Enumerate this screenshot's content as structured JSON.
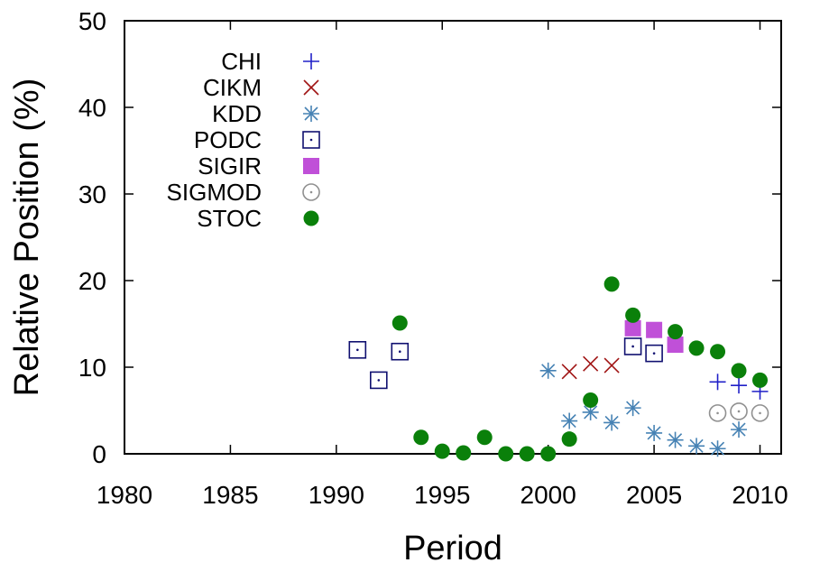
{
  "chart_data": {
    "type": "scatter",
    "title": "",
    "xlabel": "Period",
    "ylabel": "Relative Position (%)",
    "xlim": [
      1980,
      2011
    ],
    "ylim": [
      0,
      50
    ],
    "xticks": [
      1980,
      1985,
      1990,
      1995,
      2000,
      2005,
      2010
    ],
    "yticks": [
      0,
      10,
      20,
      30,
      40,
      50
    ],
    "grid": false,
    "legend_position": "top-left",
    "series": [
      {
        "name": "CHI",
        "marker": "plus",
        "color": "#2020c8",
        "points": [
          [
            2008,
            8.3
          ],
          [
            2009,
            7.9
          ],
          [
            2010,
            7.2
          ]
        ]
      },
      {
        "name": "CIKM",
        "marker": "x",
        "color": "#a01414",
        "points": [
          [
            2001,
            9.5
          ],
          [
            2002,
            10.4
          ],
          [
            2003,
            10.2
          ]
        ]
      },
      {
        "name": "KDD",
        "marker": "star",
        "color": "#4682b4",
        "points": [
          [
            2000,
            9.6
          ],
          [
            2001,
            3.8
          ],
          [
            2002,
            4.8
          ],
          [
            2003,
            3.6
          ],
          [
            2004,
            5.3
          ],
          [
            2005,
            2.4
          ],
          [
            2006,
            1.6
          ],
          [
            2007,
            0.9
          ],
          [
            2008,
            0.6
          ],
          [
            2009,
            2.8
          ]
        ]
      },
      {
        "name": "PODC",
        "marker": "square-dot",
        "color": "#101070",
        "points": [
          [
            1991,
            12.0
          ],
          [
            1992,
            8.5
          ],
          [
            1993,
            11.8
          ],
          [
            2004,
            12.4
          ],
          [
            2005,
            11.6
          ]
        ]
      },
      {
        "name": "SIGIR",
        "marker": "filled-square",
        "color": "#c050d8",
        "points": [
          [
            2004,
            14.5
          ],
          [
            2005,
            14.3
          ],
          [
            2006,
            12.6
          ]
        ]
      },
      {
        "name": "SIGMOD",
        "marker": "circle-dot",
        "color": "#909090",
        "points": [
          [
            2008,
            4.7
          ],
          [
            2009,
            4.9
          ],
          [
            2010,
            4.7
          ]
        ]
      },
      {
        "name": "STOC",
        "marker": "filled-circle",
        "color": "#0a800a",
        "points": [
          [
            1993,
            15.1
          ],
          [
            1994,
            1.9
          ],
          [
            1995,
            0.3
          ],
          [
            1996,
            0.1
          ],
          [
            1997,
            1.9
          ],
          [
            1998,
            0.0
          ],
          [
            1999,
            0.0
          ],
          [
            2000,
            0.0
          ],
          [
            2001,
            1.7
          ],
          [
            2002,
            6.2
          ],
          [
            2003,
            19.6
          ],
          [
            2004,
            16.0
          ],
          [
            2006,
            14.1
          ],
          [
            2007,
            12.2
          ],
          [
            2008,
            11.8
          ],
          [
            2009,
            9.6
          ],
          [
            2010,
            8.5
          ]
        ]
      }
    ]
  }
}
